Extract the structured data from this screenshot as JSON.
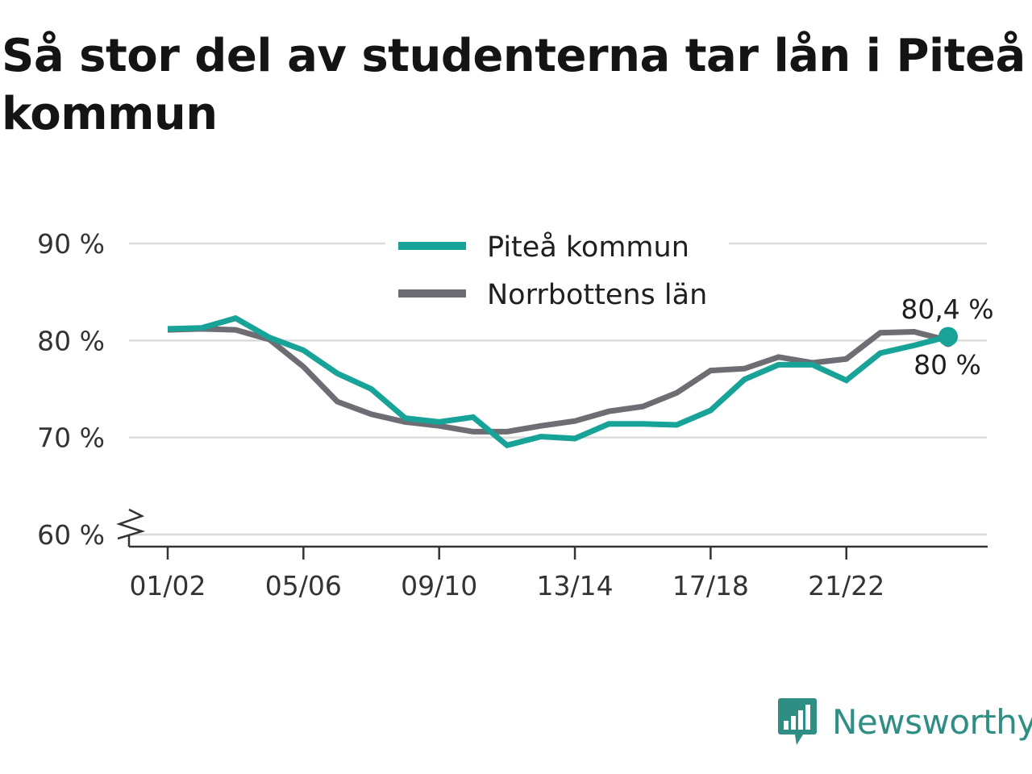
{
  "chart_data": {
    "type": "line",
    "title": "Så stor del av studenterna tar lån i Piteå kommun",
    "x": [
      "01/02",
      "02/03",
      "03/04",
      "04/05",
      "05/06",
      "06/07",
      "07/08",
      "08/09",
      "09/10",
      "10/11",
      "11/12",
      "12/13",
      "13/14",
      "14/15",
      "15/16",
      "16/17",
      "17/18",
      "18/19",
      "19/20",
      "20/21",
      "21/22",
      "22/23",
      "23/24",
      "24/25"
    ],
    "x_tick_labels": [
      "01/02",
      "05/06",
      "09/10",
      "13/14",
      "17/18",
      "21/22"
    ],
    "y_ticks": [
      60,
      70,
      80,
      90
    ],
    "y_tick_labels": [
      "60 %",
      "70 %",
      "80 %",
      "90 %"
    ],
    "ylim": [
      60,
      90
    ],
    "y_axis_break": true,
    "grid": true,
    "legend_position": "top-center",
    "series": [
      {
        "name": "Piteå kommun",
        "color": "#17a398",
        "values": [
          81.2,
          81.3,
          82.3,
          80.3,
          79.0,
          76.6,
          75.0,
          72.0,
          71.6,
          72.1,
          69.2,
          70.1,
          69.9,
          71.4,
          71.4,
          71.3,
          72.8,
          76.0,
          77.5,
          77.5,
          75.9,
          78.7,
          79.5,
          80.4
        ],
        "end_label": "80,4 %"
      },
      {
        "name": "Norrbottens län",
        "color": "#6e6d74",
        "values": [
          81.1,
          81.2,
          81.1,
          80.1,
          77.3,
          73.7,
          72.4,
          71.6,
          71.2,
          70.6,
          70.6,
          71.2,
          71.7,
          72.7,
          73.2,
          74.6,
          76.9,
          77.1,
          78.3,
          77.7,
          78.1,
          80.8,
          80.9,
          80.0
        ],
        "end_label": "80 %"
      }
    ]
  },
  "brand": {
    "name": "Newsworthy",
    "icon": "newsworthy-logo-icon",
    "color": "#2e8e84"
  }
}
